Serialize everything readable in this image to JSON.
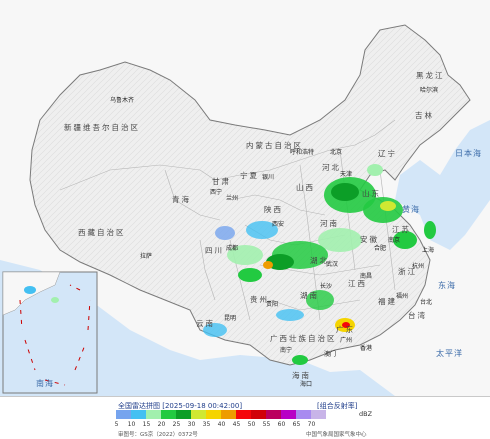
{
  "map_title": "全国雷达拼图",
  "timestamp": "2025-09-18 00:42:00",
  "product": "组合反射率",
  "unit": "dBZ",
  "approval_number": "审图号：GS京（2022）0372号",
  "source": "中国气象局国家气象中心",
  "legend": {
    "ticks": [
      "5",
      "10",
      "15",
      "20",
      "25",
      "30",
      "35",
      "40",
      "45",
      "50",
      "55",
      "60",
      "65",
      "70"
    ],
    "colors": [
      "#76a4ee",
      "#44c0f2",
      "#a2f0ae",
      "#22ca41",
      "#0c9e27",
      "#cfe832",
      "#f5d400",
      "#ee9c00",
      "#f5050a",
      "#d10109",
      "#bb005e",
      "#b800c6",
      "#a88af0",
      "#c8b4e8"
    ]
  },
  "regions": {
    "xinjiang": "新疆维吾尔自治区",
    "xizang": "西藏自治区",
    "neimenggu": "内蒙古自治区",
    "qinghai": "青海",
    "gansu": "甘肃",
    "heilongjiang": "黑龙江",
    "jilin": "吉林",
    "liaoning": "辽宁",
    "sichuan": "四川",
    "hubei": "湖北",
    "hunan": "湖南",
    "henan": "河南",
    "shanxi": "山西",
    "shaanxi": "陕西",
    "hebei": "河北",
    "shandong": "山东",
    "anhui": "安徽",
    "jiangsu": "江苏",
    "zhejiang": "浙江",
    "fujian": "福建",
    "jiangxi": "江西",
    "guangdong": "广东",
    "guangxi": "广西壮族自治区",
    "guizhou": "贵州",
    "yunnan": "云南",
    "ningxia": "宁夏",
    "hainan": "海南",
    "taiwan": "台湾"
  },
  "cities": {
    "urumqi": "乌鲁木齐",
    "harbin": "哈尔滨",
    "hohhot": "呼和浩特",
    "beijing": "北京",
    "tianjin": "天津",
    "yinchuan": "银川",
    "xining": "西宁",
    "lanzhou": "兰州",
    "xian": "西安",
    "chengdu": "成都",
    "lhasa": "拉萨",
    "wuhan": "武汉",
    "changsha": "长沙",
    "hefei": "合肥",
    "nanjing": "南京",
    "shanghai": "上海",
    "hangzhou": "杭州",
    "nanchang": "南昌",
    "fuzhou": "福州",
    "guangzhou": "广州",
    "hongkong": "香港",
    "macao": "澳门",
    "taipei": "台北",
    "nanning": "南宁",
    "kunming": "昆明",
    "guiyang": "贵阳",
    "haikou": "海口"
  },
  "seas": {
    "japan_sea": "日本海",
    "yellow_sea": "黄海",
    "east_sea": "东海",
    "pacific": "太平洋",
    "south_sea": "南海"
  }
}
